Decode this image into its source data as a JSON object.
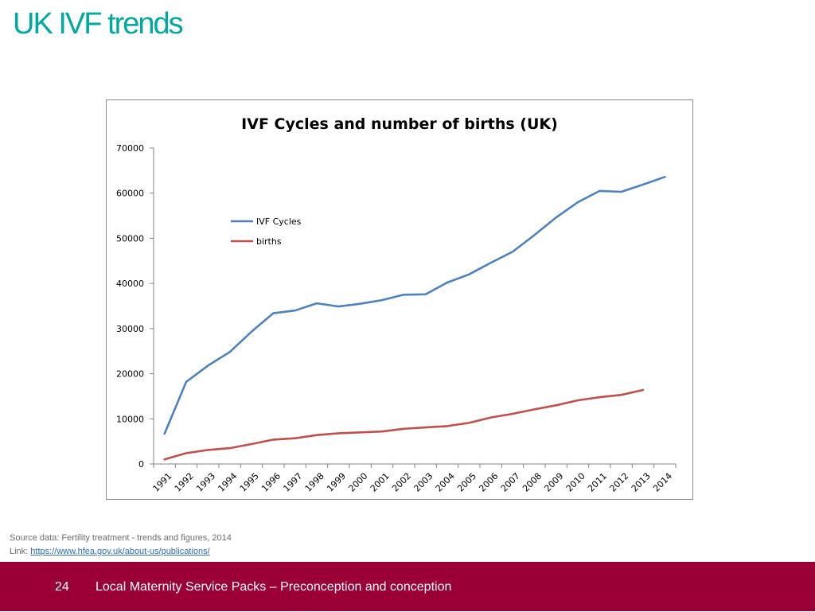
{
  "slide": {
    "title": "UK IVF trends",
    "source_line": "Source data: Fertility treatment - trends and figures, 2014",
    "link_prefix": "Link: ",
    "link_text": "https://www.hfea.gov.uk/about-us/publications/",
    "page_number": "24",
    "footer_text": "Local Maternity Service Packs – Preconception and conception"
  },
  "colors": {
    "title": "#00a99d",
    "footer_bg": "#9a0036",
    "ivf_cycles": "#4f81bd",
    "births": "#c0504d"
  },
  "chart_data": {
    "type": "line",
    "title": "IVF Cycles and number of births (UK)",
    "xlabel": "",
    "ylabel": "",
    "ylim": [
      0,
      70000
    ],
    "yticks": [
      "0",
      "10000",
      "20000",
      "30000",
      "40000",
      "50000",
      "60000",
      "70000"
    ],
    "categories": [
      "1991",
      "1992",
      "1993",
      "1994",
      "1995",
      "1996",
      "1997",
      "1998",
      "1999",
      "2000",
      "2001",
      "2002",
      "2003",
      "2004",
      "2005",
      "2006",
      "2007",
      "2008",
      "2009",
      "2010",
      "2011",
      "2012",
      "2013",
      "2014"
    ],
    "legend_position": "upper-left",
    "grid": false,
    "series": [
      {
        "name": "IVF Cycles",
        "values": [
          6700,
          18200,
          21800,
          24800,
          29300,
          33400,
          34000,
          35600,
          34900,
          35500,
          36300,
          37500,
          37600,
          40200,
          42000,
          44600,
          47000,
          50700,
          54600,
          58000,
          60500,
          60300,
          61900,
          63600
        ]
      },
      {
        "name": "births",
        "values": [
          1000,
          2400,
          3100,
          3500,
          4400,
          5400,
          5700,
          6400,
          6800,
          7000,
          7200,
          7800,
          8100,
          8400,
          9100,
          10300,
          11100,
          12100,
          13000,
          14100,
          14800,
          15300,
          16400,
          null
        ]
      }
    ]
  }
}
